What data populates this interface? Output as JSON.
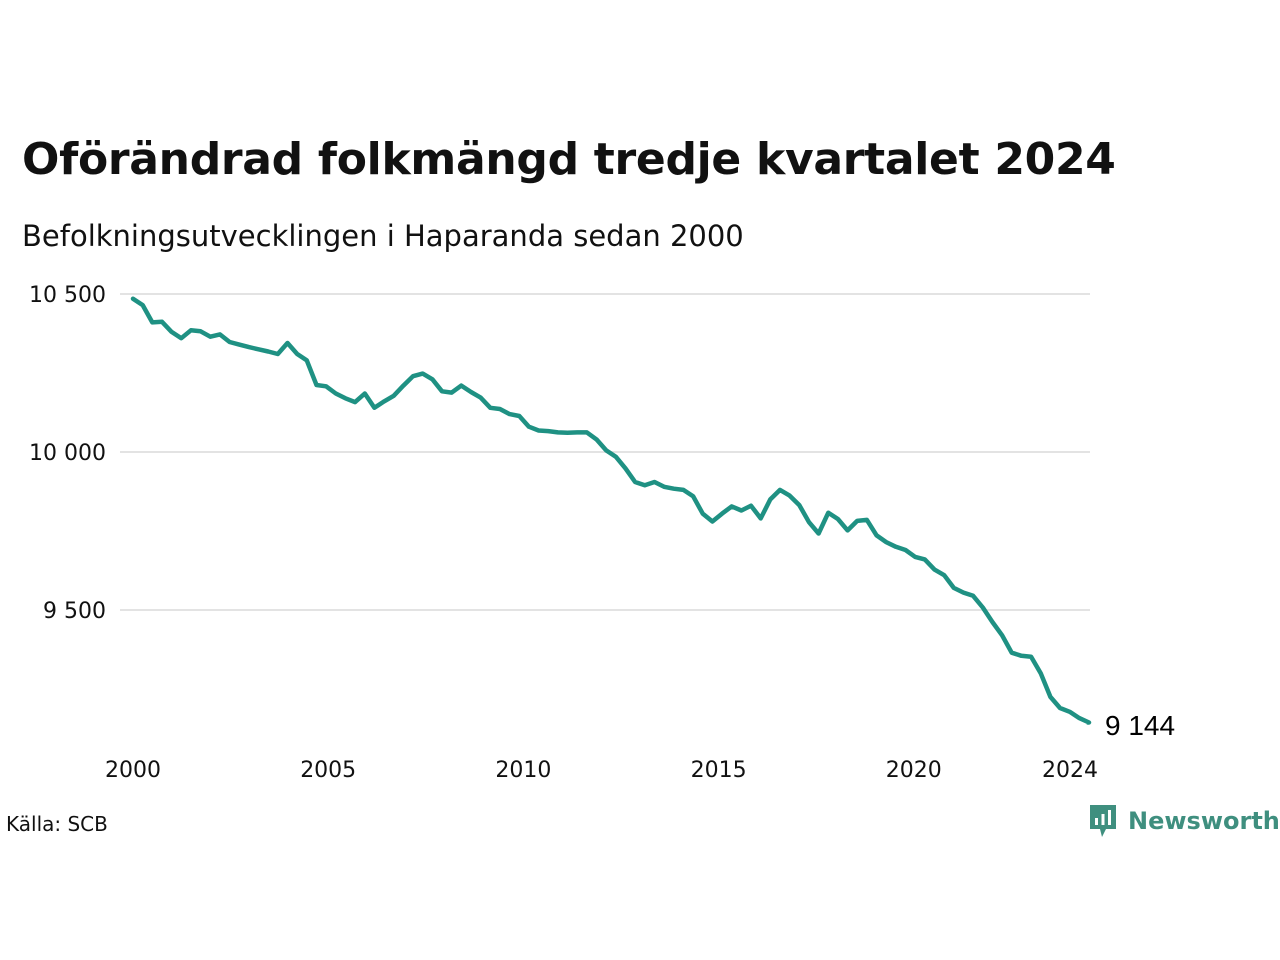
{
  "title": "Oförändrad folkmängd tredje kvartalet 2024",
  "subtitle": "Befolkningsutvecklingen i Haparanda sedan 2000",
  "source": "Källa: SCB",
  "brand": {
    "name": "Newsworthy",
    "icon": "newsworthy-logo-icon",
    "color": "#3f8f7f"
  },
  "chart_data": {
    "type": "line",
    "color": "#1f9183",
    "xlim": [
      2000,
      2025
    ],
    "ylim": [
      9100,
      10540
    ],
    "x_ticks": [
      {
        "value": 2000,
        "label": "2000"
      },
      {
        "value": 2005,
        "label": "2005"
      },
      {
        "value": 2010,
        "label": "2010"
      },
      {
        "value": 2015,
        "label": "2015"
      },
      {
        "value": 2020,
        "label": "2020"
      },
      {
        "value": 2024,
        "label": "2024"
      }
    ],
    "y_ticks": [
      {
        "value": 9500,
        "label": "9 500"
      },
      {
        "value": 10000,
        "label": "10 000"
      },
      {
        "value": 10500,
        "label": "10 500"
      }
    ],
    "grid": true,
    "end_label": "9 144",
    "series": [
      {
        "x": [
          2000.0,
          2000.25,
          2000.5,
          2000.75,
          2001.0,
          2001.25,
          2001.5,
          2001.75,
          2002.0,
          2002.25,
          2002.5,
          2002.75,
          2003.0,
          2003.25,
          2003.5,
          2003.75,
          2004.0,
          2004.25,
          2004.5,
          2004.75,
          2005.0,
          2005.25,
          2005.5,
          2005.75,
          2006.0,
          2006.25,
          2006.5,
          2006.75,
          2007.0,
          2007.25,
          2007.5,
          2007.75,
          2008.0,
          2008.25,
          2008.5,
          2008.75,
          2009.0,
          2009.25,
          2009.5,
          2009.75,
          2010.0,
          2010.25,
          2010.5,
          2010.75,
          2011.0,
          2011.25,
          2011.5,
          2011.75,
          2012.0,
          2012.25,
          2012.5,
          2012.75,
          2013.0,
          2013.25,
          2013.5,
          2013.75,
          2014.0,
          2014.25,
          2014.5,
          2014.75,
          2015.0,
          2015.25,
          2015.5,
          2015.75,
          2016.0,
          2016.25,
          2016.5,
          2016.75,
          2017.0,
          2017.25,
          2017.5,
          2017.75,
          2018.0,
          2018.25,
          2018.5,
          2018.75,
          2019.0,
          2019.25,
          2019.5,
          2019.75,
          2020.0,
          2020.25,
          2020.5,
          2020.75,
          2021.0,
          2021.25,
          2021.5,
          2021.75,
          2022.0,
          2022.25,
          2022.5,
          2022.75,
          2023.0,
          2023.25,
          2023.5,
          2023.75,
          2024.0,
          2024.25,
          2024.5,
          2024.75
        ],
        "values": [
          10485,
          10465,
          10410,
          10412,
          10380,
          10360,
          10385,
          10382,
          10365,
          10372,
          10348,
          10340,
          10332,
          10325,
          10318,
          10310,
          10345,
          10310,
          10290,
          10212,
          10208,
          10185,
          10170,
          10158,
          10185,
          10140,
          10160,
          10178,
          10210,
          10240,
          10248,
          10230,
          10192,
          10188,
          10210,
          10190,
          10172,
          10140,
          10136,
          10120,
          10114,
          10080,
          10068,
          10066,
          10062,
          10061,
          10062,
          10062,
          10040,
          10005,
          9985,
          9948,
          9905,
          9895,
          9905,
          9890,
          9884,
          9880,
          9860,
          9805,
          9780,
          9805,
          9828,
          9815,
          9830,
          9790,
          9850,
          9880,
          9862,
          9832,
          9778,
          9742,
          9808,
          9788,
          9752,
          9782,
          9785,
          9736,
          9715,
          9700,
          9690,
          9668,
          9660,
          9628,
          9610,
          9570,
          9555,
          9545,
          9508,
          9462,
          9420,
          9365,
          9355,
          9352,
          9300,
          9225,
          9190,
          9178,
          9158,
          9144
        ]
      }
    ]
  }
}
